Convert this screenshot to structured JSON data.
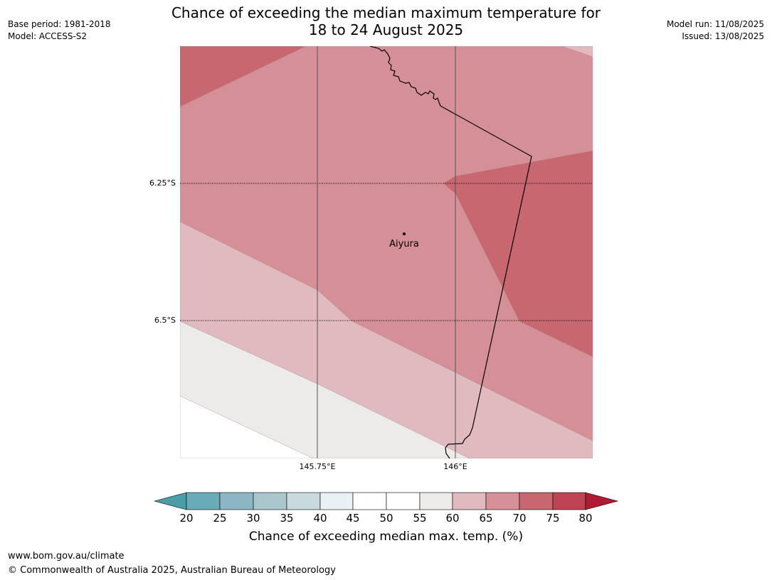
{
  "header": {
    "title_line1": "Chance of exceeding the median maximum temperature for",
    "title_line2": "18 to 24 August 2025",
    "base_period": "Base period: 1981-2018",
    "model": "Model: ACCESS-S2",
    "model_run": "Model run: 11/08/2025",
    "issued": "Issued: 13/08/2025"
  },
  "map": {
    "place": "Aiyura",
    "latitude_labels": [
      "6.25°S",
      "6.5°S"
    ],
    "longitude_labels": [
      "145.75°E",
      "146°E"
    ],
    "colors": {
      "c20_25": "#6aabb8",
      "c25_30": "#8bb6c3",
      "c30_35": "#a8c6cc",
      "c35_40": "#c9dadd",
      "c40_45": "#e9f1f3",
      "c45_55": "#ffffff",
      "c55_60": "#edebe9",
      "c60_65": "#e0babe",
      "c65_70": "#d59097",
      "c70_75": "#c96771",
      "c75_80": "#be4251",
      "c80plus": "#b01a35",
      "c_below20": "#4a9ea8"
    }
  },
  "colorbar": {
    "ticks": [
      "20",
      "25",
      "30",
      "35",
      "40",
      "45",
      "50",
      "55",
      "60",
      "65",
      "70",
      "75",
      "80"
    ],
    "label": "Chance of exceeding median max. temp. (%)"
  },
  "footer": {
    "url": "www.bom.gov.au/climate",
    "copyright": "© Commonwealth of Australia 2025, Australian Bureau of Meteorology"
  }
}
